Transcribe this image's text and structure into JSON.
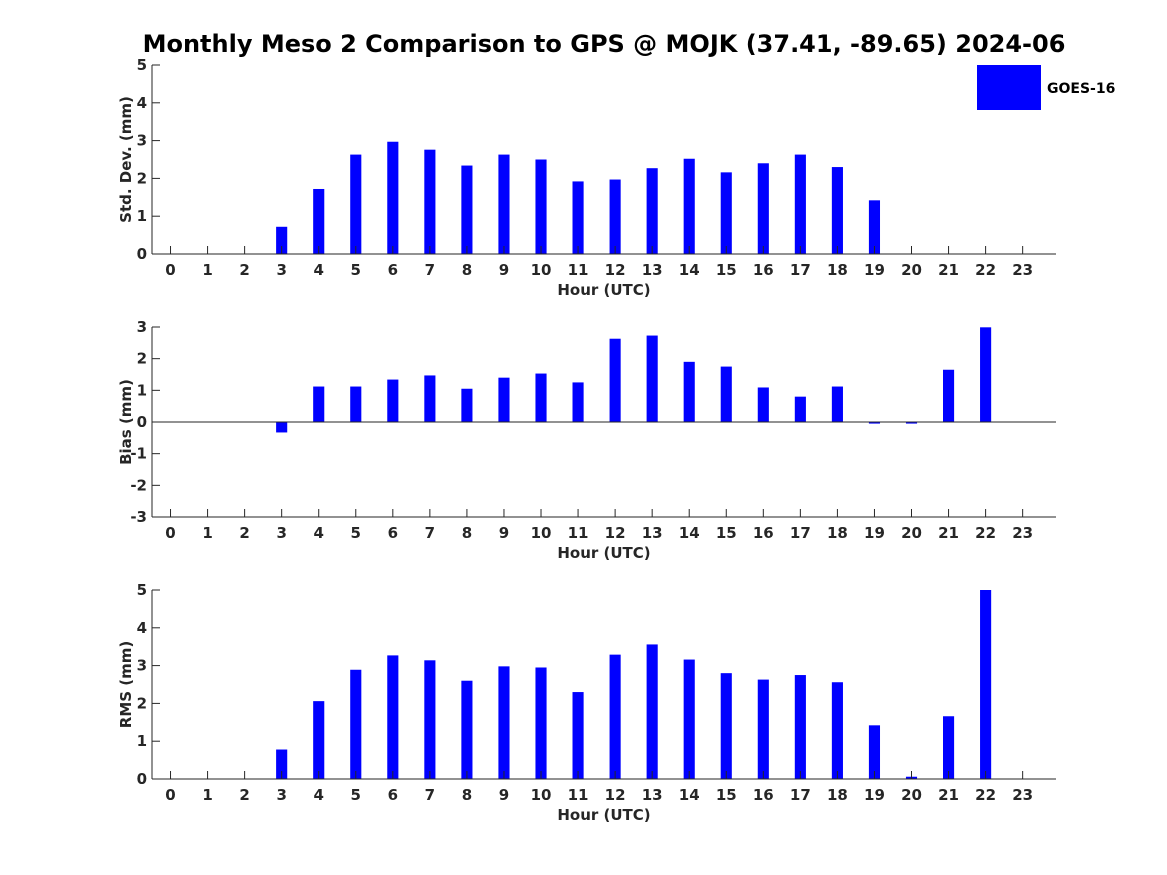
{
  "title": "Monthly Meso 2 Comparison to GPS @ MOJK (37.41, -89.65) 2024-06",
  "legend": {
    "label": "GOES-16",
    "color": "#0000ff",
    "placement": "top-right"
  },
  "chart_data": [
    {
      "type": "bar",
      "id": "std",
      "ylabel": "Std. Dev. (mm)",
      "xlabel": "Hour (UTC)",
      "ylim": [
        0,
        5
      ],
      "yticks": [
        0,
        1,
        2,
        3,
        4,
        5
      ],
      "x": [
        0,
        1,
        2,
        3,
        4,
        5,
        6,
        7,
        8,
        9,
        10,
        11,
        12,
        13,
        14,
        15,
        16,
        17,
        18,
        19,
        20,
        21,
        22,
        23
      ],
      "series": [
        {
          "name": "GOES-16",
          "values": [
            0,
            0,
            0,
            0.72,
            1.72,
            2.63,
            2.97,
            2.76,
            2.34,
            2.63,
            2.5,
            1.92,
            1.97,
            2.27,
            2.52,
            2.16,
            2.4,
            2.63,
            2.3,
            1.42,
            0,
            0,
            0,
            0
          ]
        }
      ]
    },
    {
      "type": "bar",
      "id": "bias",
      "ylabel": "Bias (mm)",
      "xlabel": "Hour (UTC)",
      "ylim": [
        -3,
        3
      ],
      "yticks": [
        -3,
        -2,
        -1,
        0,
        1,
        2,
        3
      ],
      "x": [
        0,
        1,
        2,
        3,
        4,
        5,
        6,
        7,
        8,
        9,
        10,
        11,
        12,
        13,
        14,
        15,
        16,
        17,
        18,
        19,
        20,
        21,
        22,
        23
      ],
      "series": [
        {
          "name": "GOES-16",
          "values": [
            0,
            0,
            0,
            -0.33,
            1.12,
            1.12,
            1.34,
            1.47,
            1.05,
            1.4,
            1.53,
            1.25,
            2.63,
            2.73,
            1.9,
            1.75,
            1.09,
            0.8,
            1.12,
            -0.05,
            -0.05,
            1.65,
            2.99,
            0
          ]
        }
      ]
    },
    {
      "type": "bar",
      "id": "rms",
      "ylabel": "RMS (mm)",
      "xlabel": "Hour (UTC)",
      "ylim": [
        0,
        5
      ],
      "yticks": [
        0,
        1,
        2,
        3,
        4,
        5
      ],
      "x": [
        0,
        1,
        2,
        3,
        4,
        5,
        6,
        7,
        8,
        9,
        10,
        11,
        12,
        13,
        14,
        15,
        16,
        17,
        18,
        19,
        20,
        21,
        22,
        23
      ],
      "series": [
        {
          "name": "GOES-16",
          "values": [
            0,
            0,
            0,
            0.78,
            2.06,
            2.89,
            3.27,
            3.14,
            2.6,
            2.98,
            2.95,
            2.3,
            3.29,
            3.56,
            3.16,
            2.8,
            2.63,
            2.75,
            2.56,
            1.42,
            0.06,
            1.66,
            5.0,
            0
          ]
        }
      ]
    }
  ]
}
